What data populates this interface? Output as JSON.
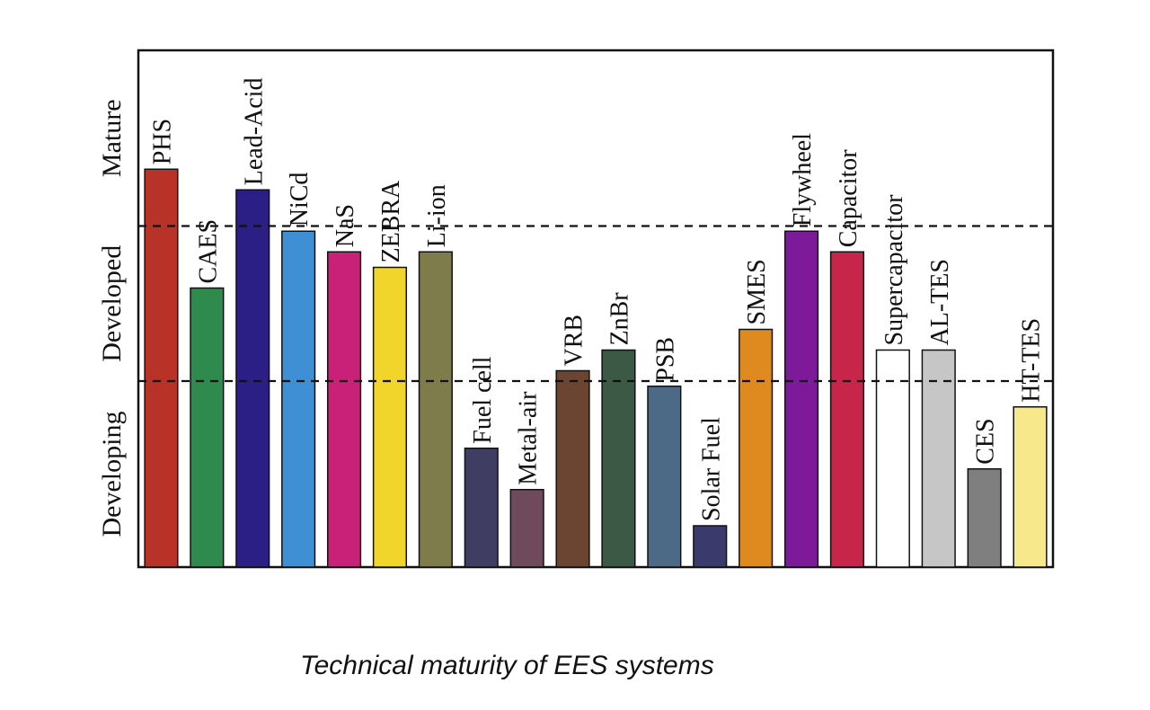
{
  "caption": "Technical maturity of EES systems",
  "chart_data": {
    "type": "bar",
    "title": "",
    "xlabel": "",
    "ylabel": "",
    "ylim": [
      0,
      100
    ],
    "grid": false,
    "maturity_levels": [
      {
        "label": "Developing",
        "from": 0,
        "to": 36
      },
      {
        "label": "Developed",
        "from": 36,
        "to": 66
      },
      {
        "label": "Mature",
        "from": 66,
        "to": 100
      }
    ],
    "thresholds": [
      36,
      66
    ],
    "bars": [
      {
        "label": "PHS",
        "value": 77,
        "color": "#b83227"
      },
      {
        "label": "CAES",
        "value": 54,
        "color": "#2e8a4d"
      },
      {
        "label": "Lead-Acid",
        "value": 73,
        "color": "#2b1f86"
      },
      {
        "label": "NiCd",
        "value": 65,
        "color": "#3e8fd3"
      },
      {
        "label": "NaS",
        "value": 61,
        "color": "#c92078"
      },
      {
        "label": "ZEBRA",
        "value": 58,
        "color": "#f2d52a"
      },
      {
        "label": "Li-ion",
        "value": 61,
        "color": "#7e7c4b"
      },
      {
        "label": "Fuel cell",
        "value": 23,
        "color": "#3f3d62"
      },
      {
        "label": "Metal-air",
        "value": 15,
        "color": "#6e4a5c"
      },
      {
        "label": "VRB",
        "value": 38,
        "color": "#6b4432"
      },
      {
        "label": "ZnBr",
        "value": 42,
        "color": "#3b5944"
      },
      {
        "label": "PSB",
        "value": 35,
        "color": "#4c6a86"
      },
      {
        "label": "Solar Fuel",
        "value": 8,
        "color": "#3a3a6c"
      },
      {
        "label": "SMES",
        "value": 46,
        "color": "#de8a1f"
      },
      {
        "label": "Flywheel",
        "value": 65,
        "color": "#7c1a9a"
      },
      {
        "label": "Capacitor",
        "value": 61,
        "color": "#c8254a"
      },
      {
        "label": "Supercapacitor",
        "value": 42,
        "color": "#ffffff"
      },
      {
        "label": "AL-TES",
        "value": 42,
        "color": "#c6c6c6"
      },
      {
        "label": "CES",
        "value": 19,
        "color": "#7f7f7f"
      },
      {
        "label": "HT-TES",
        "value": 31,
        "color": "#f7e88c"
      }
    ]
  }
}
